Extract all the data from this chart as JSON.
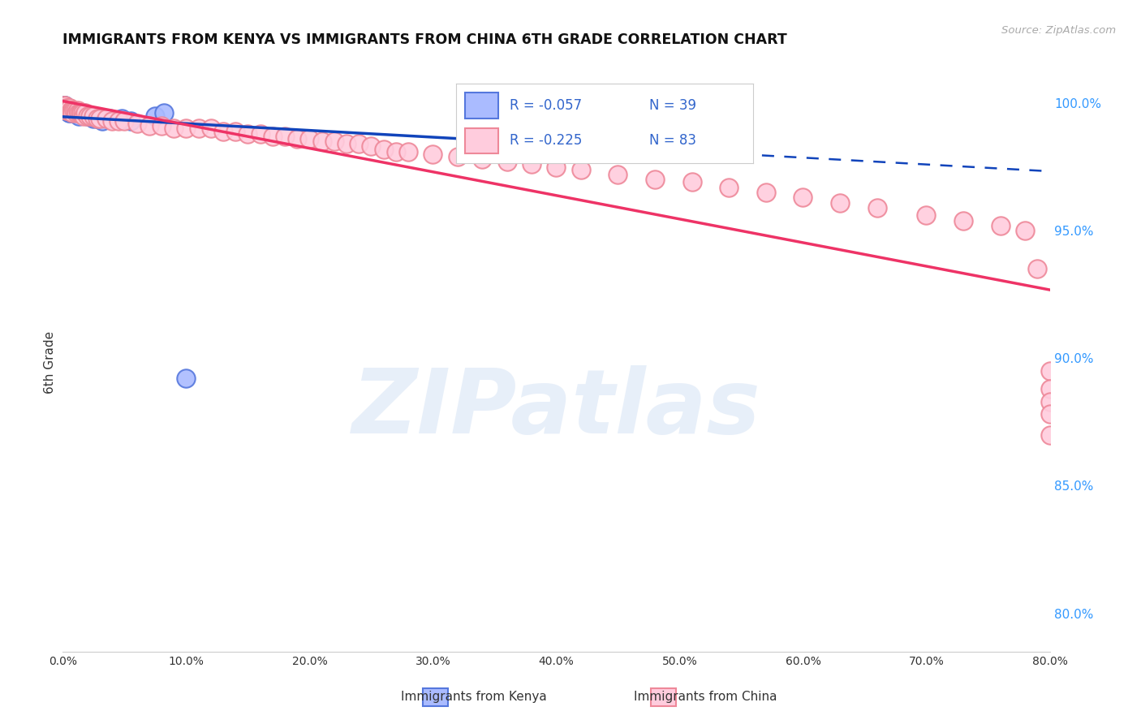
{
  "title": "IMMIGRANTS FROM KENYA VS IMMIGRANTS FROM CHINA 6TH GRADE CORRELATION CHART",
  "source": "Source: ZipAtlas.com",
  "ylabel": "6th Grade",
  "ylabel_right_ticks": [
    "100.0%",
    "95.0%",
    "90.0%",
    "85.0%",
    "80.0%"
  ],
  "ylabel_right_values": [
    1.0,
    0.95,
    0.9,
    0.85,
    0.8
  ],
  "xmin": 0.0,
  "xmax": 0.8,
  "ymin": 0.785,
  "ymax": 1.012,
  "kenya_R": -0.057,
  "kenya_N": 39,
  "china_R": -0.225,
  "china_N": 83,
  "kenya_color": "#6699ee",
  "china_color": "#ff99aa",
  "kenya_line_color": "#1144bb",
  "china_line_color": "#ee3366",
  "kenya_marker_facecolor": "#aabbff",
  "kenya_marker_edgecolor": "#5577dd",
  "china_marker_facecolor": "#ffccdd",
  "china_marker_edgecolor": "#ee8899",
  "background_color": "#ffffff",
  "grid_color": "#dddddd",
  "watermark_text": "ZIPatlas",
  "legend_kenya_label": "Immigrants from Kenya",
  "legend_china_label": "Immigrants from China",
  "kenya_scatter_x": [
    0.001,
    0.001,
    0.001,
    0.002,
    0.002,
    0.002,
    0.002,
    0.003,
    0.003,
    0.003,
    0.004,
    0.004,
    0.005,
    0.005,
    0.006,
    0.006,
    0.007,
    0.007,
    0.008,
    0.009,
    0.01,
    0.011,
    0.012,
    0.013,
    0.015,
    0.017,
    0.02,
    0.022,
    0.025,
    0.028,
    0.032,
    0.038,
    0.048,
    0.055,
    0.075,
    0.082,
    0.1,
    0.33,
    0.35
  ],
  "kenya_scatter_y": [
    0.998,
    0.999,
    0.999,
    0.999,
    0.998,
    0.998,
    0.997,
    0.998,
    0.997,
    0.997,
    0.998,
    0.997,
    0.997,
    0.996,
    0.997,
    0.996,
    0.997,
    0.996,
    0.996,
    0.996,
    0.996,
    0.996,
    0.996,
    0.995,
    0.996,
    0.996,
    0.995,
    0.995,
    0.994,
    0.994,
    0.993,
    0.994,
    0.994,
    0.993,
    0.995,
    0.996,
    0.892,
    0.999,
    0.999
  ],
  "china_scatter_x": [
    0.001,
    0.001,
    0.002,
    0.002,
    0.003,
    0.003,
    0.004,
    0.004,
    0.005,
    0.005,
    0.006,
    0.006,
    0.007,
    0.007,
    0.008,
    0.008,
    0.009,
    0.01,
    0.011,
    0.012,
    0.013,
    0.014,
    0.015,
    0.016,
    0.017,
    0.018,
    0.02,
    0.022,
    0.025,
    0.028,
    0.03,
    0.035,
    0.04,
    0.045,
    0.05,
    0.06,
    0.07,
    0.08,
    0.09,
    0.1,
    0.11,
    0.12,
    0.13,
    0.14,
    0.15,
    0.16,
    0.17,
    0.18,
    0.19,
    0.2,
    0.21,
    0.22,
    0.23,
    0.24,
    0.25,
    0.26,
    0.27,
    0.28,
    0.3,
    0.32,
    0.34,
    0.36,
    0.38,
    0.4,
    0.42,
    0.45,
    0.48,
    0.51,
    0.54,
    0.57,
    0.6,
    0.63,
    0.66,
    0.7,
    0.73,
    0.76,
    0.78,
    0.79,
    0.8,
    0.8,
    0.8,
    0.8,
    0.8
  ],
  "china_scatter_y": [
    0.998,
    0.999,
    0.998,
    0.999,
    0.997,
    0.998,
    0.997,
    0.998,
    0.997,
    0.998,
    0.997,
    0.998,
    0.997,
    0.997,
    0.997,
    0.996,
    0.997,
    0.997,
    0.996,
    0.997,
    0.996,
    0.996,
    0.996,
    0.996,
    0.995,
    0.996,
    0.995,
    0.995,
    0.995,
    0.994,
    0.994,
    0.994,
    0.993,
    0.993,
    0.993,
    0.992,
    0.991,
    0.991,
    0.99,
    0.99,
    0.99,
    0.99,
    0.989,
    0.989,
    0.988,
    0.988,
    0.987,
    0.987,
    0.986,
    0.986,
    0.985,
    0.985,
    0.984,
    0.984,
    0.983,
    0.982,
    0.981,
    0.981,
    0.98,
    0.979,
    0.978,
    0.977,
    0.976,
    0.975,
    0.974,
    0.972,
    0.97,
    0.969,
    0.967,
    0.965,
    0.963,
    0.961,
    0.959,
    0.956,
    0.954,
    0.952,
    0.95,
    0.935,
    0.895,
    0.888,
    0.883,
    0.878,
    0.87
  ]
}
